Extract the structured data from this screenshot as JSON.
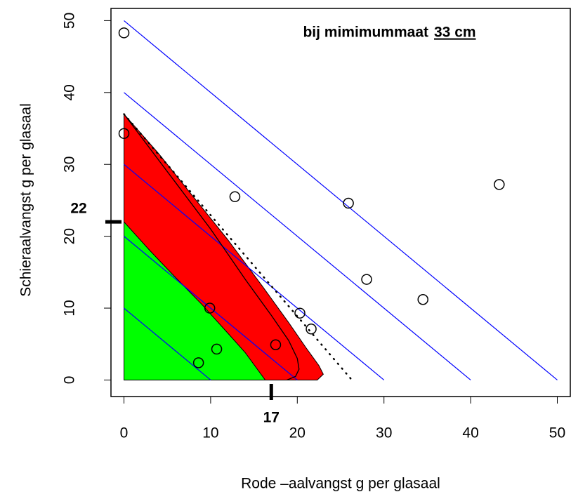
{
  "chart_data": {
    "type": "scatter",
    "annotation": "bij mimimummaat",
    "annotation_value": "33 cm",
    "x_label": "Rode –aalvangst  g per glasaal",
    "y_label": "Schieraalvangst  g per glasaal",
    "xlim": [
      -1.5,
      51.5
    ],
    "ylim": [
      -2.3,
      51.7
    ],
    "xticks": [
      0,
      10,
      20,
      30,
      40,
      50
    ],
    "yticks": [
      0,
      10,
      20,
      30,
      40,
      50
    ],
    "x": [
      0,
      0,
      12.8,
      25.9,
      43.3,
      28,
      34.5,
      20.3,
      21.6,
      9.9,
      10.7,
      8.6,
      17.5
    ],
    "y": [
      48.3,
      34.3,
      25.5,
      24.6,
      27.2,
      14,
      11.2,
      9.3,
      7.1,
      10,
      4.3,
      2.4,
      4.9
    ],
    "regions": [
      {
        "color": "#ff0000",
        "x": [
          0,
          4,
          8,
          12,
          16,
          19,
          21,
          22.5,
          23,
          22.3,
          20.5,
          0
        ],
        "y": [
          37,
          31.5,
          25.5,
          19.5,
          13,
          8,
          4.5,
          2,
          0.8,
          0,
          0,
          0
        ]
      },
      {
        "color": "#00ff00",
        "x": [
          0,
          0,
          3,
          6,
          9,
          12,
          14,
          16.3
        ],
        "y": [
          0,
          22,
          18,
          14.2,
          10.5,
          6.5,
          3.8,
          0
        ]
      }
    ],
    "curve": {
      "color": "#000000",
      "x": [
        0,
        5,
        10,
        14,
        17,
        19,
        20,
        20.2,
        19.8,
        18.8
      ],
      "y": [
        37,
        29,
        21,
        14,
        9,
        5.5,
        3,
        1.5,
        0.5,
        0
      ]
    },
    "dotted": {
      "color": "#000000",
      "x": [
        0,
        26.3
      ],
      "y": [
        37,
        0
      ]
    },
    "iso_lines": {
      "color": "#0000ff",
      "values": [
        10,
        20,
        30,
        40,
        50
      ]
    },
    "marker_y": 22,
    "marker_x": 17
  }
}
